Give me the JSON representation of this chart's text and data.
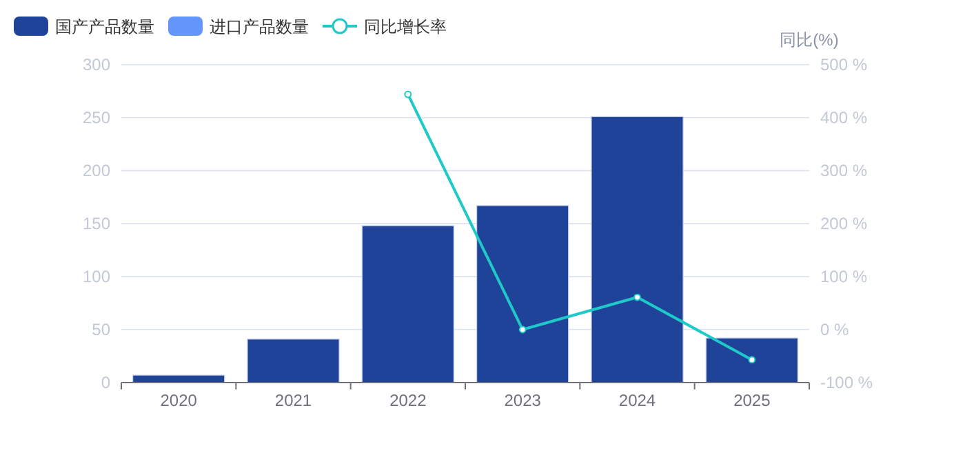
{
  "chart_data": {
    "type": "bar",
    "categories": [
      "2020",
      "2021",
      "2022",
      "2023",
      "2024",
      "2025"
    ],
    "series": [
      {
        "name": "国产产品数量",
        "color": "#1f4398",
        "values": [
          7,
          41,
          148,
          167,
          251,
          42
        ]
      },
      {
        "name": "进口产品数量",
        "color": "#6495fa",
        "values": [
          null,
          null,
          null,
          null,
          null,
          null
        ]
      },
      {
        "name": "同比增长率",
        "type": "line",
        "axis": "y2",
        "color": "#1fc9c9",
        "values": [
          null,
          null,
          444,
          0,
          61,
          -57
        ]
      }
    ],
    "ylim": [
      0,
      300
    ],
    "yticks": [
      0,
      50,
      100,
      150,
      200,
      250,
      300
    ],
    "y2label": "同比(%)",
    "y2lim": [
      -100,
      500
    ],
    "y2ticks": [
      {
        "value": -100,
        "label": "-100 %"
      },
      {
        "value": 0,
        "label": "0 %"
      },
      {
        "value": 100,
        "label": "100 %"
      },
      {
        "value": 200,
        "label": "200 %"
      },
      {
        "value": 300,
        "label": "300 %"
      },
      {
        "value": 400,
        "label": "400 %"
      },
      {
        "value": 500,
        "label": "500 %"
      }
    ],
    "grid": "y",
    "legend": "top left",
    "marker": "circle"
  }
}
